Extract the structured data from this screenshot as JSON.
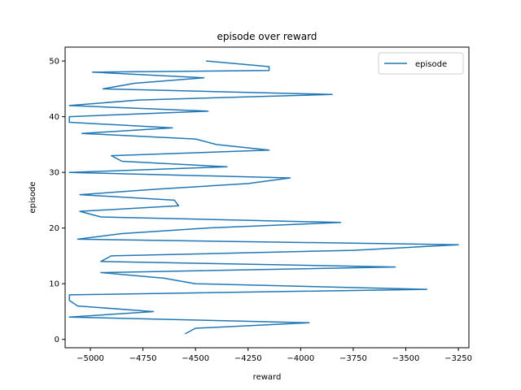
{
  "chart_data": {
    "type": "line",
    "title": "episode over reward",
    "xlabel": "reward",
    "ylabel": "episode",
    "xlim": [
      -5120,
      -3200
    ],
    "ylim": [
      -1.5,
      52.5
    ],
    "xticks": [
      -5000,
      -4750,
      -4500,
      -4250,
      -4000,
      -3750,
      -3500,
      -3250
    ],
    "xtick_labels": [
      "−5000",
      "−4750",
      "−4500",
      "−4250",
      "−4000",
      "−3750",
      "−3500",
      "−3250"
    ],
    "yticks": [
      0,
      10,
      20,
      30,
      40,
      50
    ],
    "ytick_labels": [
      "0",
      "10",
      "20",
      "30",
      "40",
      "50"
    ],
    "grid": false,
    "legend_position": "top-right",
    "series": [
      {
        "name": "episode",
        "color": "#1f77b4",
        "x": [
          -4550,
          -4500,
          -3960,
          -5100,
          -4700,
          -5060,
          -5100,
          -5100,
          -3400,
          -4500,
          -4650,
          -4950,
          -3550,
          -4950,
          -4900,
          -3750,
          -3250,
          -5060,
          -4850,
          -4450,
          -3810,
          -4950,
          -5050,
          -4580,
          -4600,
          -5050,
          -4680,
          -4250,
          -4050,
          -5100,
          -4350,
          -4850,
          -4900,
          -4150,
          -4400,
          -4500,
          -5040,
          -4610,
          -5100,
          -5100,
          -4440,
          -5100,
          -4770,
          -3850,
          -4940,
          -4790,
          -4460,
          -4990,
          -4150,
          -4150,
          -4450
        ],
        "y": [
          1,
          2,
          3,
          4,
          5,
          6,
          7,
          8,
          9,
          10,
          11,
          12,
          13,
          14,
          15,
          16,
          17,
          18,
          19,
          20,
          21,
          22,
          23,
          24,
          25,
          26,
          27,
          28,
          29,
          30,
          31,
          32,
          33,
          34,
          35,
          36,
          37,
          38,
          39,
          40,
          41,
          42,
          43,
          44,
          45,
          46,
          47,
          48,
          48.3,
          49,
          50
        ]
      }
    ]
  }
}
